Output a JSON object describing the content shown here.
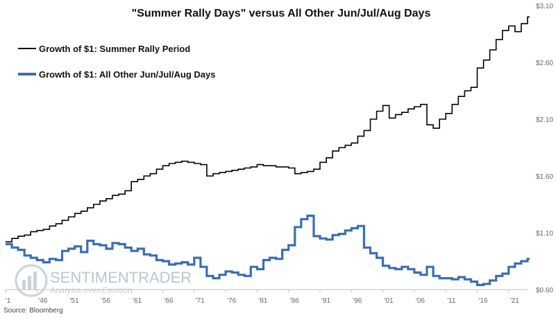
{
  "chart_data": {
    "type": "line",
    "title": "\"Summer Rally Days\" versus All Other Jun/Jul/Aug Days",
    "xlabel": "",
    "ylabel": "",
    "x_tick_labels": [
      "'1",
      "'46",
      "'51",
      "'56",
      "'61",
      "'66",
      "'71",
      "'76",
      "'81",
      "'86",
      "'91",
      "'96",
      "'01",
      "'06",
      "'11",
      "'16",
      "'21"
    ],
    "y_tick_labels": [
      "$0.60",
      "$1.10",
      "$1.60",
      "$2.10",
      "$2.60",
      "$3.10"
    ],
    "ylim": [
      0.6,
      3.1
    ],
    "legend_position": "top-left",
    "grid": false,
    "series": [
      {
        "name": "Growth of $1: Summer Rally Period",
        "color": "#000000",
        "x": [
          1941,
          1942,
          1943,
          1944,
          1945,
          1946,
          1947,
          1948,
          1949,
          1950,
          1951,
          1952,
          1953,
          1954,
          1955,
          1956,
          1957,
          1958,
          1959,
          1960,
          1961,
          1962,
          1963,
          1964,
          1965,
          1966,
          1967,
          1968,
          1969,
          1970,
          1971,
          1972,
          1973,
          1974,
          1975,
          1976,
          1977,
          1978,
          1979,
          1980,
          1981,
          1982,
          1983,
          1984,
          1985,
          1986,
          1987,
          1988,
          1989,
          1990,
          1991,
          1992,
          1993,
          1994,
          1995,
          1996,
          1997,
          1998,
          1999,
          2000,
          2001,
          2002,
          2003,
          2004,
          2005,
          2006,
          2007,
          2008,
          2009,
          2010,
          2011,
          2012,
          2013,
          2014,
          2015,
          2016,
          2017,
          2018,
          2019,
          2020,
          2021,
          2022,
          2023,
          2024
        ],
        "values": [
          1.02,
          1.05,
          1.07,
          1.08,
          1.11,
          1.12,
          1.13,
          1.16,
          1.18,
          1.21,
          1.24,
          1.27,
          1.29,
          1.32,
          1.35,
          1.38,
          1.4,
          1.43,
          1.44,
          1.47,
          1.55,
          1.57,
          1.6,
          1.62,
          1.66,
          1.69,
          1.71,
          1.72,
          1.73,
          1.72,
          1.71,
          1.7,
          1.6,
          1.62,
          1.63,
          1.64,
          1.65,
          1.66,
          1.67,
          1.68,
          1.7,
          1.69,
          1.69,
          1.68,
          1.68,
          1.67,
          1.62,
          1.63,
          1.64,
          1.66,
          1.72,
          1.76,
          1.82,
          1.85,
          1.87,
          1.89,
          1.95,
          2.0,
          2.1,
          2.17,
          2.22,
          2.11,
          2.14,
          2.16,
          2.19,
          2.21,
          2.23,
          2.05,
          2.02,
          2.1,
          2.15,
          2.23,
          2.3,
          2.35,
          2.38,
          2.55,
          2.62,
          2.71,
          2.8,
          2.88,
          2.92,
          2.87,
          2.94,
          3.0
        ]
      },
      {
        "name": "Growth of $1: All Other Jun/Jul/Aug Days",
        "color": "#3a6fb0",
        "x": [
          1941,
          1942,
          1943,
          1944,
          1945,
          1946,
          1947,
          1948,
          1949,
          1950,
          1951,
          1952,
          1953,
          1954,
          1955,
          1956,
          1957,
          1958,
          1959,
          1960,
          1961,
          1962,
          1963,
          1964,
          1965,
          1966,
          1967,
          1968,
          1969,
          1970,
          1971,
          1972,
          1973,
          1974,
          1975,
          1976,
          1977,
          1978,
          1979,
          1980,
          1981,
          1982,
          1983,
          1984,
          1985,
          1986,
          1987,
          1988,
          1989,
          1990,
          1991,
          1992,
          1993,
          1994,
          1995,
          1996,
          1997,
          1998,
          1999,
          2000,
          2001,
          2002,
          2003,
          2004,
          2005,
          2006,
          2007,
          2008,
          2009,
          2010,
          2011,
          2012,
          2013,
          2014,
          2015,
          2016,
          2017,
          2018,
          2019,
          2020,
          2021,
          2022,
          2023,
          2024
        ],
        "values": [
          1.0,
          0.97,
          0.95,
          0.9,
          0.88,
          0.86,
          0.84,
          0.87,
          0.86,
          0.94,
          0.96,
          0.98,
          0.93,
          1.03,
          1.0,
          0.99,
          0.96,
          1.01,
          1.0,
          0.97,
          0.94,
          0.96,
          0.91,
          0.9,
          0.86,
          0.85,
          0.82,
          0.83,
          0.84,
          0.82,
          0.88,
          0.8,
          0.72,
          0.7,
          0.73,
          0.76,
          0.75,
          0.73,
          0.72,
          0.8,
          0.78,
          0.86,
          0.88,
          0.87,
          0.95,
          0.99,
          1.15,
          1.22,
          1.25,
          1.07,
          1.05,
          1.04,
          1.08,
          1.09,
          1.12,
          1.14,
          1.16,
          0.97,
          0.92,
          0.88,
          0.81,
          0.79,
          0.78,
          0.8,
          0.78,
          0.75,
          0.73,
          0.8,
          0.72,
          0.7,
          0.7,
          0.69,
          0.71,
          0.69,
          0.67,
          0.64,
          0.65,
          0.68,
          0.72,
          0.74,
          0.8,
          0.83,
          0.85,
          0.87
        ]
      }
    ]
  },
  "source": "Source: Bloomberg",
  "watermark": {
    "brand": "SENTIMENTRADER",
    "tagline": "Analysis over Emotion"
  }
}
